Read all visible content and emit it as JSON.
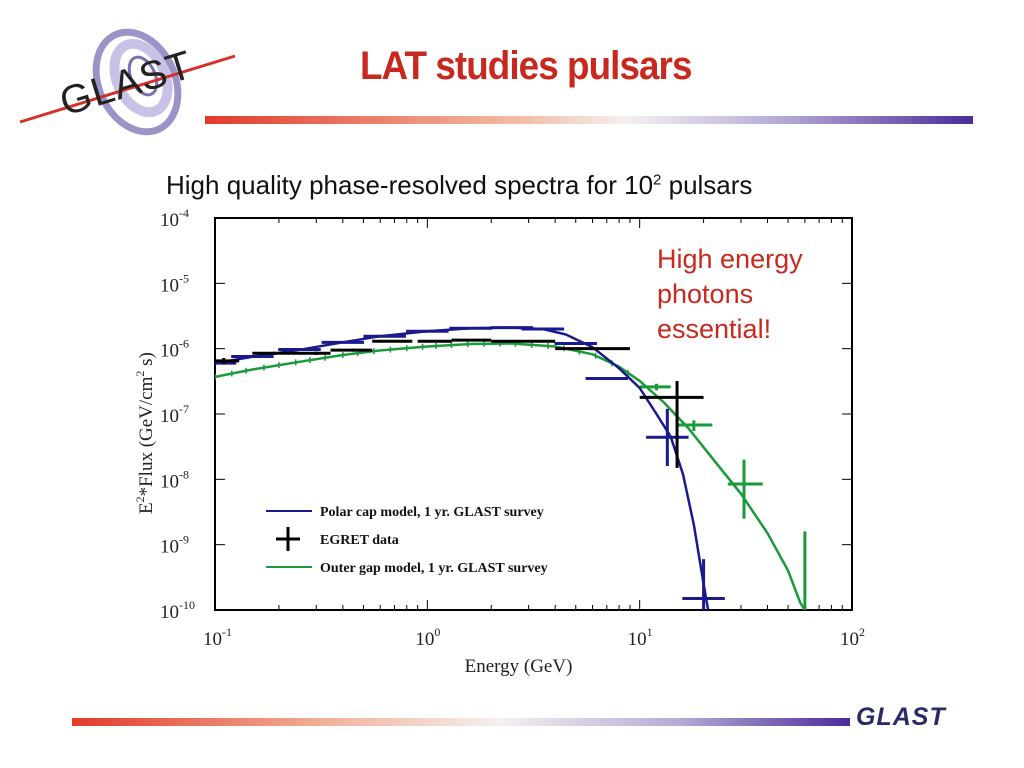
{
  "slide": {
    "title": "LAT studies pulsars",
    "subtitle_text": "High quality phase-resolved spectra for 10",
    "subtitle_exp": "2",
    "subtitle_tail": " pulsars",
    "note_lines": [
      "High energy",
      "photons",
      "essential!"
    ],
    "logo_text": "GLAST",
    "footer_logo_text": "GLAST"
  },
  "colors": {
    "title": "#c8281e",
    "polar": "#1a1a8c",
    "egret": "#000000",
    "outer": "#1a9a3a"
  },
  "chart_data": {
    "type": "line",
    "xlabel": "Energy (GeV)",
    "ylabel_parts": [
      "E",
      "2",
      "*Flux (GeV/cm",
      "2",
      " s)"
    ],
    "x_scale": "log",
    "y_scale": "log",
    "xlim": [
      0.1,
      100
    ],
    "ylim": [
      1e-10,
      0.0001
    ],
    "x_ticks": [
      {
        "base": "10",
        "exp": "-1"
      },
      {
        "base": "10",
        "exp": "0"
      },
      {
        "base": "10",
        "exp": "1"
      },
      {
        "base": "10",
        "exp": "2"
      }
    ],
    "y_ticks": [
      {
        "base": "10",
        "exp": "-4"
      },
      {
        "base": "10",
        "exp": "-5"
      },
      {
        "base": "10",
        "exp": "-6"
      },
      {
        "base": "10",
        "exp": "-7"
      },
      {
        "base": "10",
        "exp": "-8"
      },
      {
        "base": "10",
        "exp": "-9"
      },
      {
        "base": "10",
        "exp": "-10"
      }
    ],
    "legend_position": "bottom-left",
    "series": [
      {
        "name": "Polar cap model, 1 yr. GLAST survey",
        "kind": "line-with-bins",
        "curve": [
          [
            0.1,
            6e-07
          ],
          [
            0.15,
            7.5e-07
          ],
          [
            0.25,
            9.6e-07
          ],
          [
            0.4,
            1.25e-06
          ],
          [
            0.6,
            1.55e-06
          ],
          [
            1.0,
            1.85e-06
          ],
          [
            1.6,
            2.05e-06
          ],
          [
            2.5,
            2.1e-06
          ],
          [
            3.5,
            2e-06
          ],
          [
            4.5,
            1.65e-06
          ],
          [
            6,
            1.05e-06
          ],
          [
            8,
            5e-07
          ],
          [
            10,
            2.5e-07
          ],
          [
            12,
            1e-07
          ],
          [
            14,
            4.5e-08
          ],
          [
            16,
            1.2e-08
          ],
          [
            18,
            2e-09
          ],
          [
            20,
            2.5e-10
          ],
          [
            21,
            1e-10
          ]
        ],
        "bins": [
          {
            "x": 0.1,
            "y": 6e-07
          },
          {
            "x": 0.15,
            "y": 7.6e-07
          },
          {
            "x": 0.25,
            "y": 9.7e-07
          },
          {
            "x": 0.4,
            "y": 1.25e-06
          },
          {
            "x": 0.63,
            "y": 1.55e-06
          },
          {
            "x": 1.0,
            "y": 1.85e-06
          },
          {
            "x": 1.6,
            "y": 2.05e-06
          },
          {
            "x": 2.5,
            "y": 2.1e-06
          },
          {
            "x": 3.5,
            "y": 2e-06
          },
          {
            "x": 5.0,
            "y": 1.2e-06
          },
          {
            "x": 7.0,
            "y": 3.5e-07
          },
          {
            "x": 13.5,
            "y": 4.4e-08
          },
          {
            "x": 20,
            "y": 1.5e-10
          }
        ]
      },
      {
        "name": "EGRET data",
        "kind": "errorbars",
        "points": [
          {
            "x": 0.11,
            "y": 6.5e-07,
            "xlo": 0.1,
            "xhi": 0.13,
            "ylo": 5.8e-07,
            "yhi": 7.2e-07
          },
          {
            "x": 0.19,
            "y": 8.5e-07,
            "xlo": 0.15,
            "xhi": 0.25,
            "ylo": 8e-07,
            "yhi": 9e-07
          },
          {
            "x": 0.3,
            "y": 8.5e-07,
            "xlo": 0.25,
            "xhi": 0.35,
            "ylo": 8e-07,
            "yhi": 9e-07
          },
          {
            "x": 0.45,
            "y": 9.5e-07,
            "xlo": 0.35,
            "xhi": 0.55,
            "ylo": 9e-07,
            "yhi": 1e-06
          },
          {
            "x": 0.7,
            "y": 1.3e-06,
            "xlo": 0.55,
            "xhi": 0.85,
            "ylo": 1.25e-06,
            "yhi": 1.35e-06
          },
          {
            "x": 1.1,
            "y": 1.3e-06,
            "xlo": 0.9,
            "xhi": 1.3,
            "ylo": 1.25e-06,
            "yhi": 1.35e-06
          },
          {
            "x": 1.6,
            "y": 1.35e-06,
            "xlo": 1.3,
            "xhi": 2.0,
            "ylo": 1.3e-06,
            "yhi": 1.4e-06
          },
          {
            "x": 3.0,
            "y": 1.3e-06,
            "xlo": 2.0,
            "xhi": 4.0,
            "ylo": 1.25e-06,
            "yhi": 1.35e-06
          },
          {
            "x": 6.0,
            "y": 1e-06,
            "xlo": 4.0,
            "xhi": 9.0,
            "ylo": 9.5e-07,
            "yhi": 1.05e-06
          },
          {
            "x": 15,
            "y": 1.8e-07,
            "xlo": 10,
            "xhi": 20,
            "ylo": 1.5e-08,
            "yhi": 3.2e-07
          }
        ]
      },
      {
        "name": "Outer gap model, 1 yr. GLAST survey",
        "kind": "line-with-errorbars",
        "curve": [
          [
            0.1,
            3.7e-07
          ],
          [
            0.15,
            4.8e-07
          ],
          [
            0.25,
            6.3e-07
          ],
          [
            0.4,
            8e-07
          ],
          [
            0.6,
            9.4e-07
          ],
          [
            1.0,
            1.08e-06
          ],
          [
            1.6,
            1.18e-06
          ],
          [
            2.5,
            1.2e-06
          ],
          [
            4,
            1.08e-06
          ],
          [
            6,
            8.2e-07
          ],
          [
            8,
            5.3e-07
          ],
          [
            10,
            3.2e-07
          ],
          [
            13,
            1.5e-07
          ],
          [
            17,
            6e-08
          ],
          [
            22,
            2.1e-08
          ],
          [
            30,
            6e-09
          ],
          [
            40,
            1.5e-09
          ],
          [
            50,
            4e-10
          ],
          [
            57,
            1.3e-10
          ],
          [
            60,
            1e-10
          ]
        ],
        "points": [
          {
            "x": 12,
            "y": 2.6e-07,
            "xlo": 10,
            "xhi": 14,
            "ylo": 2.3e-07,
            "yhi": 2.9e-07
          },
          {
            "x": 18,
            "y": 6.8e-08,
            "xlo": 15,
            "xhi": 22,
            "ylo": 5.5e-08,
            "yhi": 8e-08
          },
          {
            "x": 31,
            "y": 8.5e-09,
            "xlo": 26,
            "xhi": 38,
            "ylo": 2.5e-09,
            "yhi": 2e-08
          },
          {
            "x": 60,
            "y": 1e-10,
            "xlo": 60,
            "xhi": 60,
            "ylo": 1e-10,
            "yhi": 1.6e-09
          }
        ],
        "dense_bins": [
          0.1,
          0.12,
          0.14,
          0.17,
          0.2,
          0.24,
          0.28,
          0.33,
          0.4,
          0.47,
          0.56,
          0.67,
          0.8,
          0.95,
          1.1,
          1.3,
          1.55,
          1.85,
          2.2,
          2.6,
          3.1,
          3.7,
          4.4,
          5.2,
          6.2,
          7.4,
          8.8
        ]
      }
    ]
  }
}
